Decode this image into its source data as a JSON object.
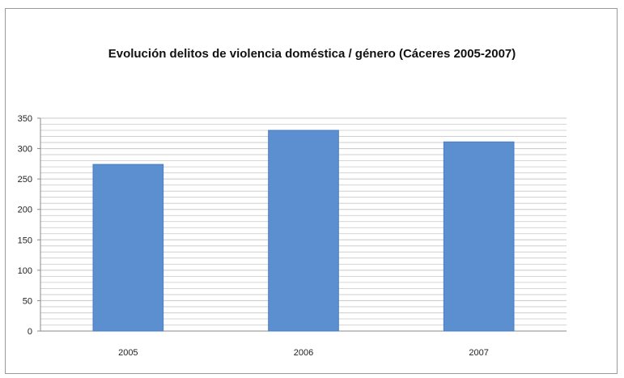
{
  "chart_data": {
    "type": "bar",
    "title": "Evolución delitos de violencia doméstica / género (Cáceres 2005-2007)",
    "categories": [
      "2005",
      "2006",
      "2007"
    ],
    "values": [
      274,
      330,
      311
    ],
    "ylim": [
      0,
      350
    ],
    "yticks": [
      0,
      50,
      100,
      150,
      200,
      250,
      300,
      350
    ],
    "minor_grid_step": 10,
    "grid": true,
    "legend": "none",
    "colors": {
      "bar": "#5b8fcf",
      "bar_edge": "#4a7fbf",
      "grid": "#c8c8c8",
      "axis": "#8a8a8a"
    }
  }
}
